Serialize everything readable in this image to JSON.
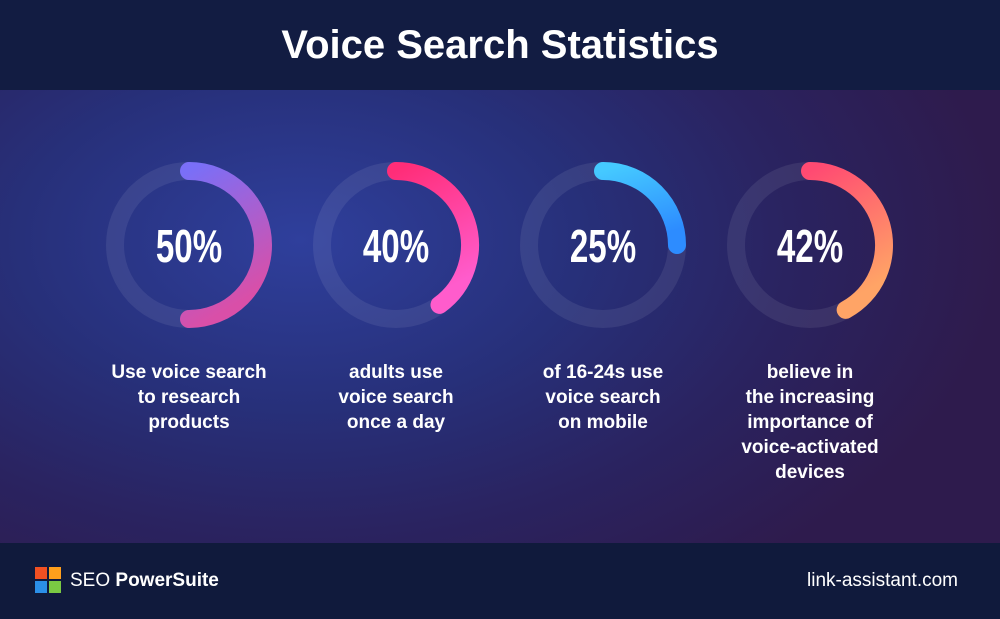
{
  "chart_data": {
    "type": "donut",
    "title": "Voice Search Statistics",
    "categories": [
      "Use voice search\nto research\nproducts",
      "adults use\nvoice search\nonce a day",
      "of 16-24s use\nvoice search\non mobile",
      "believe in\nthe increasing\nimportance of\nvoice-activated\ndevices"
    ],
    "values": [
      50,
      40,
      25,
      42
    ],
    "value_labels": [
      "50%",
      "40%",
      "25%",
      "42%"
    ],
    "colors": [
      [
        "#7a6ff7",
        "#d94fa8"
      ],
      [
        "#ff2d78",
        "#ff5ccc"
      ],
      [
        "#45c9ff",
        "#2d8cff"
      ],
      [
        "#ff4a72",
        "#ffa466"
      ]
    ]
  },
  "footer": {
    "brand_light": "SEO",
    "brand_bold": "PowerSuite",
    "site": "link-assistant.com"
  }
}
